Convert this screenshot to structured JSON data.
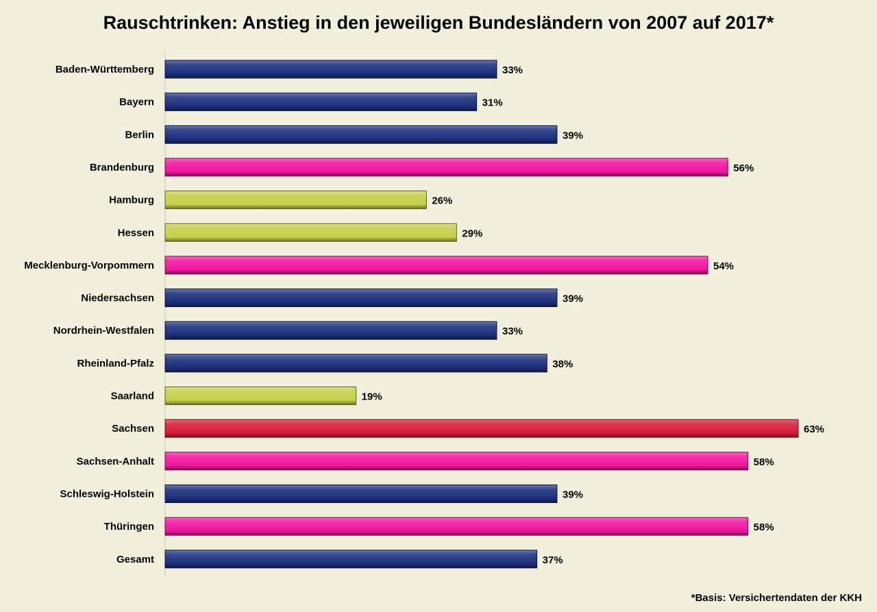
{
  "chart_data": {
    "type": "bar",
    "orientation": "horizontal",
    "title": "Rauschtrinken: Anstieg in den jeweiligen Bundesländern von 2007 auf 2017*",
    "footnote": "*Basis: Versichertendaten der KKH",
    "categories": [
      "Baden-Württemberg",
      "Bayern",
      "Berlin",
      "Brandenburg",
      "Hamburg",
      "Hessen",
      "Mecklenburg-Vorpommern",
      "Niedersachsen",
      "Nordrhein-Westfalen",
      "Rheinland-Pfalz",
      "Saarland",
      "Sachsen",
      "Sachsen-Anhalt",
      "Schleswig-Holstein",
      "Thüringen",
      "Gesamt"
    ],
    "values": [
      33,
      31,
      39,
      56,
      26,
      29,
      54,
      39,
      33,
      38,
      19,
      63,
      58,
      39,
      58,
      37
    ],
    "value_labels": [
      "33%",
      "31%",
      "39%",
      "56%",
      "26%",
      "29%",
      "54%",
      "39%",
      "33%",
      "38%",
      "19%",
      "63%",
      "58%",
      "39%",
      "58%",
      "37%"
    ],
    "bar_colors": [
      "#1c2f7c",
      "#1c2f7c",
      "#1c2f7c",
      "#f0169e",
      "#c4cf4a",
      "#c4cf4a",
      "#f0169e",
      "#1c2f7c",
      "#1c2f7c",
      "#1c2f7c",
      "#c4cf4a",
      "#d81c3a",
      "#f0169e",
      "#1c2f7c",
      "#f0169e",
      "#1c2f7c"
    ],
    "xlim": [
      0,
      70
    ],
    "grid": false,
    "legend": "none"
  }
}
